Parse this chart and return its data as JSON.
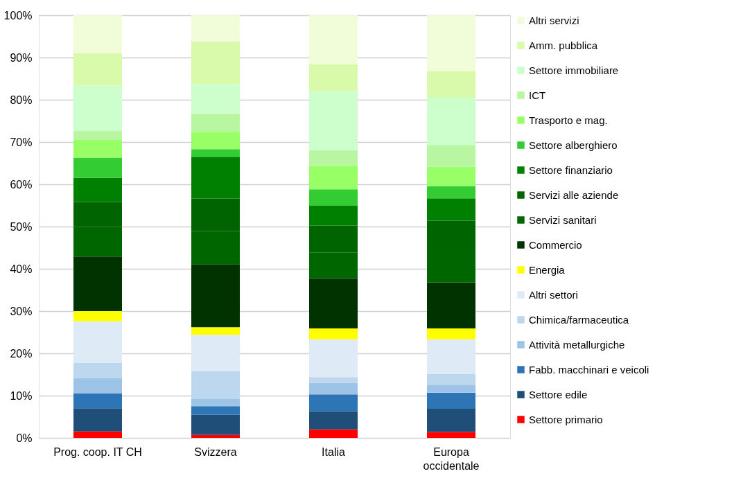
{
  "chart_data": {
    "type": "bar",
    "stacked": true,
    "categories": [
      "Prog. coop. IT CH",
      "Svizzera",
      "Italia",
      "Europa occidentale"
    ],
    "series": [
      {
        "name": "Settore primario",
        "color": "#ff0000",
        "values": [
          1.5,
          0.7,
          2.0,
          1.4
        ]
      },
      {
        "name": "Settore edile",
        "color": "#1f4e79",
        "values": [
          5.5,
          4.8,
          4.3,
          5.5
        ]
      },
      {
        "name": "Fabb. macchinari e veicoli",
        "color": "#2e75b6",
        "values": [
          3.5,
          2.0,
          4.0,
          3.8
        ]
      },
      {
        "name": "Attività metallurgiche",
        "color": "#9dc3e6",
        "values": [
          3.7,
          1.7,
          2.7,
          1.9
        ]
      },
      {
        "name": "Chimica/farmaceutica",
        "color": "#bdd7ee",
        "values": [
          3.5,
          6.6,
          1.4,
          2.5
        ]
      },
      {
        "name": "Altri settori",
        "color": "#deebf7",
        "values": [
          9.9,
          8.6,
          8.9,
          8.2
        ]
      },
      {
        "name": "Energia",
        "color": "#ffff00",
        "values": [
          2.4,
          1.8,
          2.6,
          2.6
        ]
      },
      {
        "name": "Commercio",
        "color": "#003300",
        "values": [
          12.9,
          14.9,
          11.9,
          10.9
        ]
      },
      {
        "name": "Servizi sanitari",
        "color": "#006600",
        "values": [
          7.0,
          7.8,
          6.0,
          7.8
        ]
      },
      {
        "name": "Servizi alle aziende",
        "color": "#006400",
        "values": [
          5.9,
          7.7,
          6.4,
          6.8
        ]
      },
      {
        "name": "Settore finanziario",
        "color": "#008000",
        "values": [
          5.7,
          9.9,
          4.7,
          5.3
        ]
      },
      {
        "name": "Settore alberghiero",
        "color": "#33cc33",
        "values": [
          4.8,
          1.8,
          3.9,
          2.9
        ]
      },
      {
        "name": "Trasporto e mag.",
        "color": "#99ff66",
        "values": [
          4.2,
          4.1,
          5.6,
          4.6
        ]
      },
      {
        "name": "ICT",
        "color": "#b9f6a1",
        "values": [
          2.2,
          4.3,
          3.7,
          5.1
        ]
      },
      {
        "name": "Settore immobiliare",
        "color": "#ccffcc",
        "values": [
          10.7,
          7.0,
          13.9,
          11.2
        ]
      },
      {
        "name": "Amm. pubblica",
        "color": "#dafaab",
        "values": [
          7.6,
          10.1,
          6.4,
          6.3
        ]
      },
      {
        "name": "Altri servizi",
        "color": "#f0fdd8",
        "values": [
          9.0,
          6.2,
          11.6,
          13.2
        ]
      }
    ],
    "ylim": [
      0,
      100
    ],
    "yticks": [
      {
        "value": 0,
        "label": "0%"
      },
      {
        "value": 10,
        "label": "10%"
      },
      {
        "value": 20,
        "label": "20%"
      },
      {
        "value": 30,
        "label": "30%"
      },
      {
        "value": 40,
        "label": "40%"
      },
      {
        "value": 50,
        "label": "50%"
      },
      {
        "value": 60,
        "label": "60%"
      },
      {
        "value": 70,
        "label": "70%"
      },
      {
        "value": 80,
        "label": "80%"
      },
      {
        "value": 90,
        "label": "90%"
      },
      {
        "value": 100,
        "label": "100%"
      }
    ],
    "grid": "y",
    "legend": "right"
  }
}
